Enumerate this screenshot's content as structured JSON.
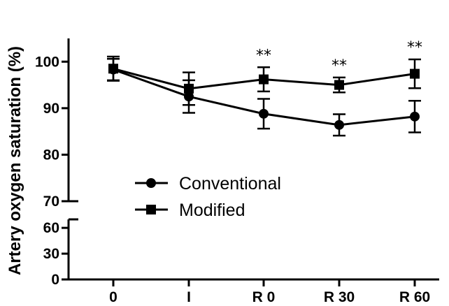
{
  "chart_data": {
    "type": "line",
    "ylabel": "Artery oxygen saturation (%)",
    "xlabel": "",
    "categories": [
      "0",
      "I",
      "R 0",
      "R 30",
      "R 60"
    ],
    "y_axis_break": true,
    "y_segments": [
      {
        "range": [
          0,
          65
        ],
        "ticks": [
          0,
          30,
          60
        ]
      },
      {
        "range": [
          70,
          105
        ],
        "ticks": [
          70,
          80,
          90,
          100
        ]
      }
    ],
    "series": [
      {
        "name": "Conventional",
        "marker": "circle",
        "values": [
          98.3,
          92.5,
          88.8,
          86.4,
          88.2
        ],
        "errors": [
          2.3,
          3.5,
          3.2,
          2.3,
          3.4
        ]
      },
      {
        "name": "Modified",
        "marker": "square",
        "values": [
          98.5,
          94.2,
          96.2,
          95.0,
          97.4
        ],
        "errors": [
          2.6,
          3.5,
          2.6,
          1.6,
          3.1
        ]
      }
    ],
    "annotations": [
      {
        "category": "R 0",
        "text": "**"
      },
      {
        "category": "R 30",
        "text": "**"
      },
      {
        "category": "R 60",
        "text": "**"
      }
    ],
    "legend_position": "lower-center"
  }
}
